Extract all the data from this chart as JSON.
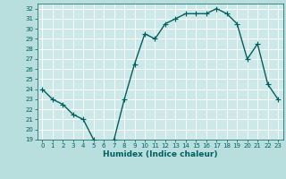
{
  "title": "",
  "xlabel": "Humidex (Indice chaleur)",
  "ylabel": "",
  "x": [
    0,
    1,
    2,
    3,
    4,
    5,
    6,
    7,
    8,
    9,
    10,
    11,
    12,
    13,
    14,
    15,
    16,
    17,
    18,
    19,
    20,
    21,
    22,
    23
  ],
  "y": [
    24.0,
    23.0,
    22.5,
    21.5,
    21.0,
    19.0,
    18.5,
    19.0,
    23.0,
    26.5,
    29.5,
    29.0,
    30.5,
    31.0,
    31.5,
    31.5,
    31.5,
    32.0,
    31.5,
    30.5,
    27.0,
    28.5,
    24.5,
    23.0
  ],
  "ylim": [
    19,
    32.5
  ],
  "xlim": [
    -0.5,
    23.5
  ],
  "yticks": [
    19,
    20,
    21,
    22,
    23,
    24,
    25,
    26,
    27,
    28,
    29,
    30,
    31,
    32
  ],
  "xticks": [
    0,
    1,
    2,
    3,
    4,
    5,
    6,
    7,
    8,
    9,
    10,
    11,
    12,
    13,
    14,
    15,
    16,
    17,
    18,
    19,
    20,
    21,
    22,
    23
  ],
  "line_color": "#006060",
  "bg_color": "#b8dede",
  "plot_bg_color": "#cce8e8",
  "grid_color": "#ffffff",
  "marker": "+",
  "marker_size": 4,
  "line_width": 1.0,
  "tick_fontsize": 5.0,
  "xlabel_fontsize": 6.5
}
